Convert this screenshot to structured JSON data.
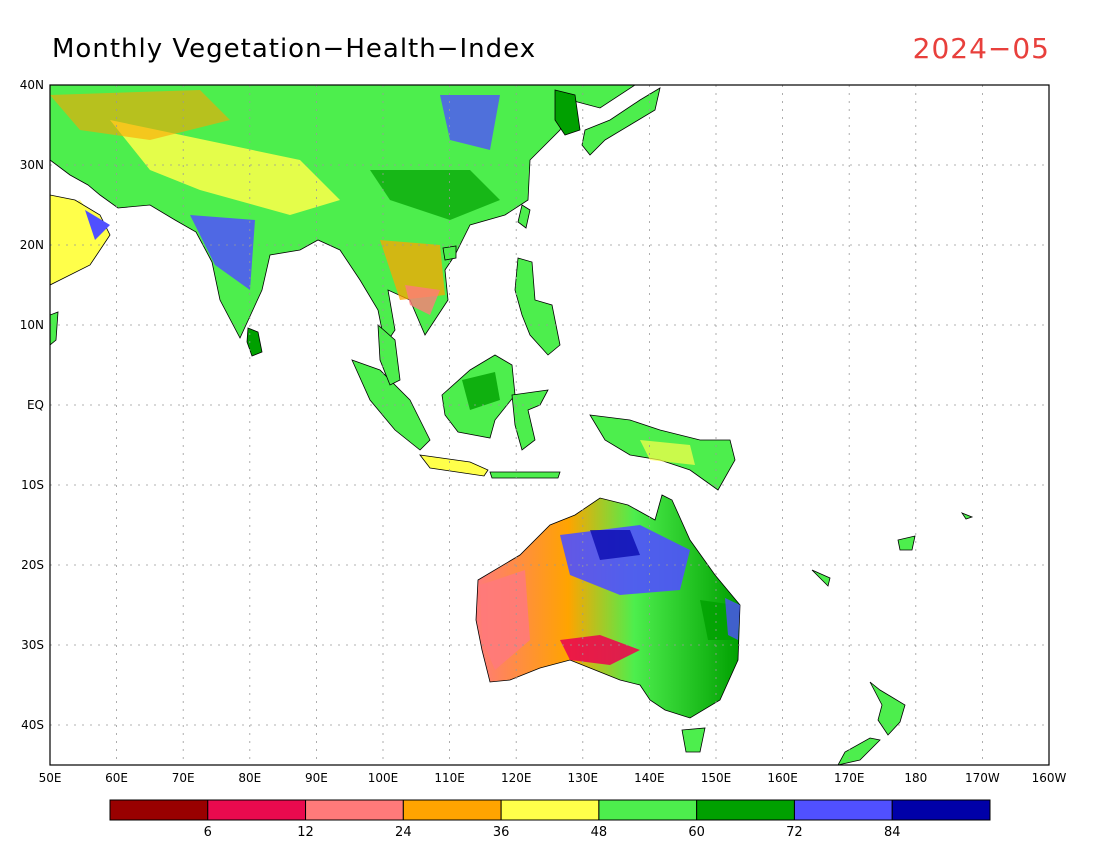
{
  "title": "Monthly Vegetation−Health−Index",
  "date": "2024−05",
  "date_color": "#e8403c",
  "lat_labels": [
    "40N",
    "30N",
    "20N",
    "10N",
    "EQ",
    "10S",
    "20S",
    "30S",
    "40S"
  ],
  "lon_labels": [
    "50E",
    "60E",
    "70E",
    "80E",
    "90E",
    "100E",
    "110E",
    "120E",
    "130E",
    "140E",
    "150E",
    "160E",
    "170E",
    "180",
    "170W",
    "160W"
  ],
  "colorbar": {
    "colors": [
      "#990000",
      "#ea0a4e",
      "#ff7a7a",
      "#ffa400",
      "#ffff4a",
      "#4dee4d",
      "#00a000",
      "#5050ff",
      "#0000a8"
    ],
    "labels": [
      "6",
      "12",
      "24",
      "36",
      "48",
      "60",
      "72",
      "84"
    ]
  }
}
